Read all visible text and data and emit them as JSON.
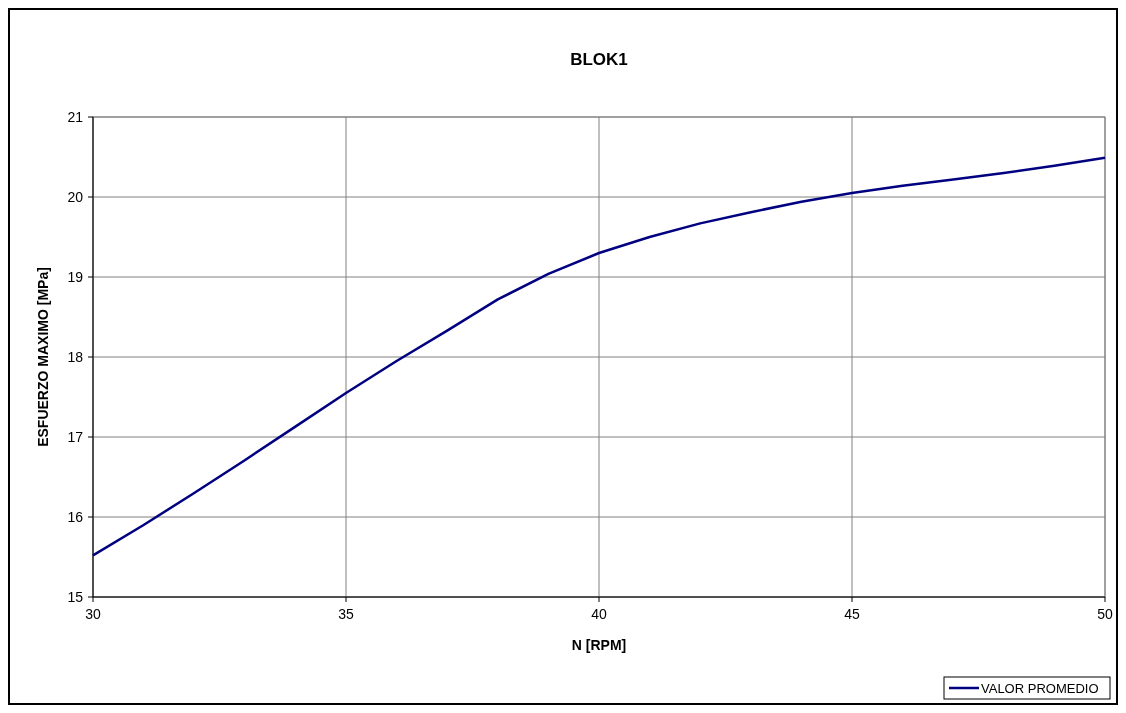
{
  "chart_data": {
    "type": "line",
    "title": "BLOK1",
    "xlabel": "N [RPM]",
    "ylabel": "ESFUERZO MAXIMO [MPa]",
    "x": [
      30,
      31,
      32,
      33,
      34,
      35,
      36,
      37,
      38,
      39,
      40,
      41,
      42,
      43,
      44,
      45,
      46,
      47,
      48,
      49,
      50
    ],
    "series": [
      {
        "name": "VALOR PROMEDIO",
        "color": "#000080",
        "values": [
          15.52,
          15.9,
          16.3,
          16.71,
          17.13,
          17.55,
          17.95,
          18.33,
          18.72,
          19.04,
          19.3,
          19.5,
          19.67,
          19.81,
          19.94,
          20.05,
          20.14,
          20.22,
          20.3,
          20.39,
          20.49
        ]
      }
    ],
    "xlim": [
      30,
      50
    ],
    "xticks": [
      30,
      35,
      40,
      45,
      50
    ],
    "ylim": [
      15,
      21
    ],
    "yticks": [
      15,
      16,
      17,
      18,
      19,
      20,
      21
    ],
    "grid": true,
    "legend": "bottom right",
    "marker": "none",
    "line_style": "solid"
  }
}
